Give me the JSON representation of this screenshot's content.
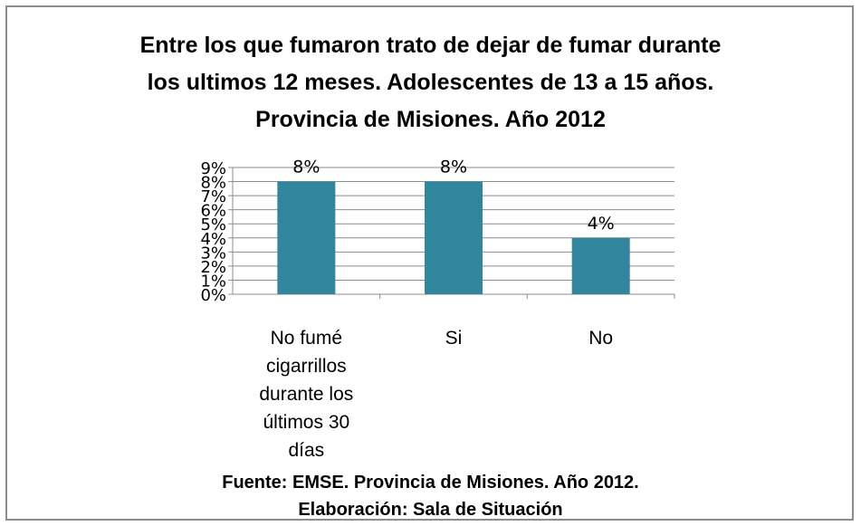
{
  "chart_data": {
    "type": "bar",
    "title_lines": [
      "Entre los que fumaron trato de dejar de fumar durante",
      "los ultimos 12 meses. Adolescentes de 13 a 15 años.",
      "Provincia de Misiones. Año 2012"
    ],
    "categories": [
      "No fumé cigarrillos durante los últimos 30 días",
      "Si",
      "No"
    ],
    "category_label_lines": [
      [
        "No fumé",
        "cigarrillos",
        "durante los",
        "últimos 30",
        "días"
      ],
      [
        "Si"
      ],
      [
        "No"
      ]
    ],
    "values": [
      8,
      8,
      4
    ],
    "data_labels": [
      "8%",
      "8%",
      "4%"
    ],
    "ylim": [
      0,
      9
    ],
    "y_ticks": [
      "0%",
      "1%",
      "2%",
      "3%",
      "4%",
      "5%",
      "6%",
      "7%",
      "8%",
      "9%"
    ],
    "grid": true,
    "bar_color": "#31859c",
    "footer_lines": [
      "Fuente: EMSE. Provincia de Misiones. Año 2012.",
      "Elaboración: Sala de Situación"
    ]
  }
}
